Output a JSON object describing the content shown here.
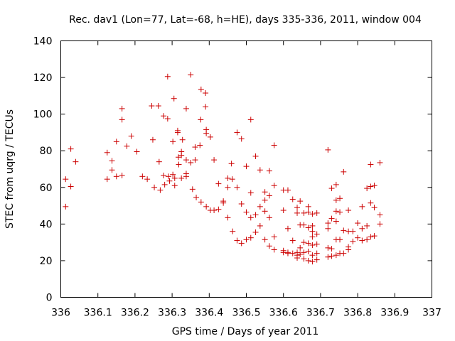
{
  "chart_data": {
    "type": "scatter",
    "title": "Rec. dav1 (Lon=77, Lat=-68, h=HE), days 335-336, 2011, window 004",
    "xlabel": "GPS time / Days of year 2011",
    "ylabel": "STEC from uqrg / TECUs",
    "xlim": [
      336,
      337
    ],
    "ylim": [
      0,
      140
    ],
    "x_ticks": [
      "336",
      "336.1",
      "336.2",
      "336.3",
      "336.4",
      "336.5",
      "336.6",
      "336.7",
      "336.8",
      "336.9",
      "337"
    ],
    "y_ticks": [
      "0",
      "20",
      "40",
      "60",
      "80",
      "100",
      "120",
      "140"
    ],
    "grid": false,
    "legend": "none",
    "marker_color": "#cc0000",
    "marker": "plus",
    "series": [
      {
        "points": [
          [
            336.013,
            64.5
          ],
          [
            336.013,
            49.5
          ],
          [
            336.027,
            81.0
          ],
          [
            336.027,
            60.5
          ],
          [
            336.04,
            74.0
          ],
          [
            336.125,
            79.0
          ],
          [
            336.125,
            64.5
          ],
          [
            336.138,
            74.5
          ],
          [
            336.138,
            69.5
          ],
          [
            336.15,
            85.0
          ],
          [
            336.15,
            66.0
          ],
          [
            336.165,
            103.0
          ],
          [
            336.165,
            97.0
          ],
          [
            336.165,
            66.5
          ],
          [
            336.178,
            82.5
          ],
          [
            336.19,
            88.0
          ],
          [
            336.205,
            79.5
          ],
          [
            336.22,
            66.0
          ],
          [
            336.233,
            64.5
          ],
          [
            336.245,
            104.5
          ],
          [
            336.248,
            86.0
          ],
          [
            336.252,
            60.0
          ],
          [
            336.263,
            104.5
          ],
          [
            336.265,
            74.0
          ],
          [
            336.268,
            58.5
          ],
          [
            336.277,
            99.0
          ],
          [
            336.277,
            66.5
          ],
          [
            336.28,
            61.5
          ],
          [
            336.288,
            97.5
          ],
          [
            336.288,
            120.5
          ],
          [
            336.29,
            66.0
          ],
          [
            336.293,
            63.5
          ],
          [
            336.302,
            67.0
          ],
          [
            336.302,
            85.0
          ],
          [
            336.305,
            108.5
          ],
          [
            336.307,
            65.0
          ],
          [
            336.307,
            61.0
          ],
          [
            336.315,
            91.0
          ],
          [
            336.315,
            90.0
          ],
          [
            336.317,
            76.5
          ],
          [
            336.318,
            72.5
          ],
          [
            336.325,
            79.5
          ],
          [
            336.325,
            77.5
          ],
          [
            336.325,
            65.0
          ],
          [
            336.328,
            86.0
          ],
          [
            336.338,
            103.0
          ],
          [
            336.338,
            75.0
          ],
          [
            336.338,
            67.5
          ],
          [
            336.338,
            66.0
          ],
          [
            336.35,
            73.5
          ],
          [
            336.35,
            121.5
          ],
          [
            336.355,
            59.0
          ],
          [
            336.362,
            75.0
          ],
          [
            336.362,
            82.0
          ],
          [
            336.365,
            54.5
          ],
          [
            336.375,
            83.0
          ],
          [
            336.377,
            97.0
          ],
          [
            336.378,
            113.5
          ],
          [
            336.378,
            52.0
          ],
          [
            336.39,
            111.5
          ],
          [
            336.39,
            104.0
          ],
          [
            336.392,
            91.5
          ],
          [
            336.392,
            89.5
          ],
          [
            336.392,
            49.5
          ],
          [
            336.403,
            87.5
          ],
          [
            336.403,
            47.5
          ],
          [
            336.413,
            75.0
          ],
          [
            336.413,
            47.5
          ],
          [
            336.425,
            62.0
          ],
          [
            336.425,
            48.0
          ],
          [
            336.438,
            52.5
          ],
          [
            336.438,
            51.5
          ],
          [
            336.45,
            65.0
          ],
          [
            336.45,
            60.0
          ],
          [
            336.45,
            43.5
          ],
          [
            336.46,
            73.0
          ],
          [
            336.462,
            64.5
          ],
          [
            336.463,
            36.0
          ],
          [
            336.475,
            90.0
          ],
          [
            336.475,
            60.0
          ],
          [
            336.475,
            31.0
          ],
          [
            336.487,
            86.5
          ],
          [
            336.487,
            51.0
          ],
          [
            336.487,
            29.5
          ],
          [
            336.5,
            71.5
          ],
          [
            336.5,
            46.5
          ],
          [
            336.5,
            31.5
          ],
          [
            336.512,
            97.0
          ],
          [
            336.512,
            57.0
          ],
          [
            336.512,
            43.5
          ],
          [
            336.512,
            32.5
          ],
          [
            336.525,
            77.0
          ],
          [
            336.525,
            45.0
          ],
          [
            336.525,
            35.5
          ],
          [
            336.537,
            69.5
          ],
          [
            336.537,
            49.5
          ],
          [
            336.537,
            39.0
          ],
          [
            336.55,
            57.5
          ],
          [
            336.55,
            53.0
          ],
          [
            336.55,
            47.0
          ],
          [
            336.55,
            31.5
          ],
          [
            336.562,
            69.0
          ],
          [
            336.562,
            55.5
          ],
          [
            336.562,
            43.5
          ],
          [
            336.562,
            28.0
          ],
          [
            336.575,
            83.0
          ],
          [
            336.575,
            61.0
          ],
          [
            336.575,
            33.0
          ],
          [
            336.575,
            26.0
          ],
          [
            336.6,
            58.5
          ],
          [
            336.6,
            47.5
          ],
          [
            336.6,
            25.5
          ],
          [
            336.6,
            24.5
          ],
          [
            336.612,
            58.5
          ],
          [
            336.612,
            37.5
          ],
          [
            336.612,
            24.5
          ],
          [
            336.612,
            24.0
          ],
          [
            336.625,
            53.5
          ],
          [
            336.625,
            31.0
          ],
          [
            336.625,
            24.0
          ],
          [
            336.637,
            49.0
          ],
          [
            336.637,
            46.0
          ],
          [
            336.637,
            24.5
          ],
          [
            336.637,
            23.0
          ],
          [
            336.637,
            21.5
          ],
          [
            336.645,
            52.5
          ],
          [
            336.645,
            39.5
          ],
          [
            336.645,
            27.0
          ],
          [
            336.645,
            23.5
          ],
          [
            336.655,
            46.0
          ],
          [
            336.655,
            39.5
          ],
          [
            336.655,
            30.0
          ],
          [
            336.655,
            24.5
          ],
          [
            336.655,
            21.0
          ],
          [
            336.667,
            49.5
          ],
          [
            336.667,
            46.5
          ],
          [
            336.667,
            38.0
          ],
          [
            336.667,
            29.5
          ],
          [
            336.667,
            25.0
          ],
          [
            336.667,
            20.0
          ],
          [
            336.678,
            45.5
          ],
          [
            336.678,
            39.0
          ],
          [
            336.678,
            36.0
          ],
          [
            336.678,
            33.0
          ],
          [
            336.678,
            28.5
          ],
          [
            336.678,
            23.0
          ],
          [
            336.678,
            19.5
          ],
          [
            336.69,
            46.0
          ],
          [
            336.69,
            34.5
          ],
          [
            336.69,
            29.0
          ],
          [
            336.69,
            24.0
          ],
          [
            336.69,
            20.5
          ],
          [
            336.72,
            80.5
          ],
          [
            336.72,
            40.5
          ],
          [
            336.72,
            37.5
          ],
          [
            336.72,
            27.0
          ],
          [
            336.72,
            22.0
          ],
          [
            336.73,
            59.5
          ],
          [
            336.73,
            43.0
          ],
          [
            336.73,
            26.5
          ],
          [
            336.73,
            22.5
          ],
          [
            336.742,
            61.5
          ],
          [
            336.742,
            53.0
          ],
          [
            336.742,
            47.0
          ],
          [
            336.742,
            41.5
          ],
          [
            336.742,
            31.5
          ],
          [
            336.742,
            23.0
          ],
          [
            336.752,
            54.0
          ],
          [
            336.752,
            46.5
          ],
          [
            336.752,
            31.5
          ],
          [
            336.752,
            24.0
          ],
          [
            336.762,
            68.5
          ],
          [
            336.762,
            36.5
          ],
          [
            336.762,
            24.0
          ],
          [
            336.775,
            47.5
          ],
          [
            336.775,
            36.0
          ],
          [
            336.775,
            27.5
          ],
          [
            336.775,
            26.0
          ],
          [
            336.787,
            36.0
          ],
          [
            336.787,
            30.5
          ],
          [
            336.8,
            40.5
          ],
          [
            336.8,
            32.5
          ],
          [
            336.812,
            49.5
          ],
          [
            336.812,
            37.5
          ],
          [
            336.812,
            31.0
          ],
          [
            336.825,
            59.5
          ],
          [
            336.825,
            39.0
          ],
          [
            336.825,
            31.5
          ],
          [
            336.835,
            72.5
          ],
          [
            336.835,
            60.5
          ],
          [
            336.835,
            51.5
          ],
          [
            336.835,
            33.0
          ],
          [
            336.845,
            61.0
          ],
          [
            336.845,
            49.0
          ],
          [
            336.845,
            33.5
          ],
          [
            336.86,
            73.5
          ],
          [
            336.86,
            45.0
          ],
          [
            336.86,
            40.0
          ]
        ]
      }
    ]
  }
}
